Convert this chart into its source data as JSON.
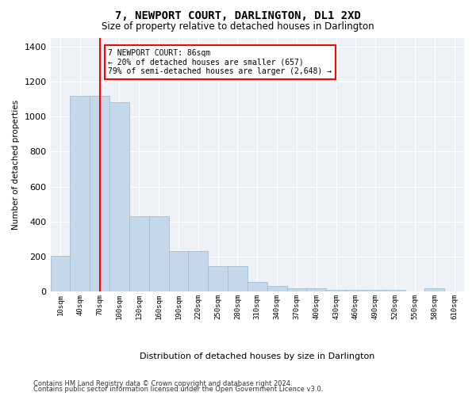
{
  "title": "7, NEWPORT COURT, DARLINGTON, DL1 2XD",
  "subtitle": "Size of property relative to detached houses in Darlington",
  "xlabel": "Distribution of detached houses by size in Darlington",
  "ylabel": "Number of detached properties",
  "categories": [
    "10sqm",
    "40sqm",
    "70sqm",
    "100sqm",
    "130sqm",
    "160sqm",
    "190sqm",
    "220sqm",
    "250sqm",
    "280sqm",
    "310sqm",
    "340sqm",
    "370sqm",
    "400sqm",
    "430sqm",
    "460sqm",
    "490sqm",
    "520sqm",
    "550sqm",
    "580sqm",
    "610sqm"
  ],
  "bar_values": [
    205,
    1120,
    1120,
    1080,
    430,
    430,
    230,
    230,
    145,
    145,
    55,
    35,
    20,
    20,
    10,
    10,
    10,
    10,
    0,
    20,
    0
  ],
  "bar_color": "#c5d8ea",
  "bar_edge_color": "#9ab8d0",
  "subject_label": "7 NEWPORT COURT: 86sqm",
  "annotation_line1": "← 20% of detached houses are smaller (657)",
  "annotation_line2": "79% of semi-detached houses are larger (2,648) →",
  "vline_color": "red",
  "property_sqm": 86,
  "ylim": [
    0,
    1450
  ],
  "yticks": [
    0,
    200,
    400,
    600,
    800,
    1000,
    1200,
    1400
  ],
  "footer1": "Contains HM Land Registry data © Crown copyright and database right 2024.",
  "footer2": "Contains public sector information licensed under the Open Government Licence v3.0.",
  "plot_bg_color": "#eef2f7",
  "title_fontsize": 10,
  "subtitle_fontsize": 8.5
}
